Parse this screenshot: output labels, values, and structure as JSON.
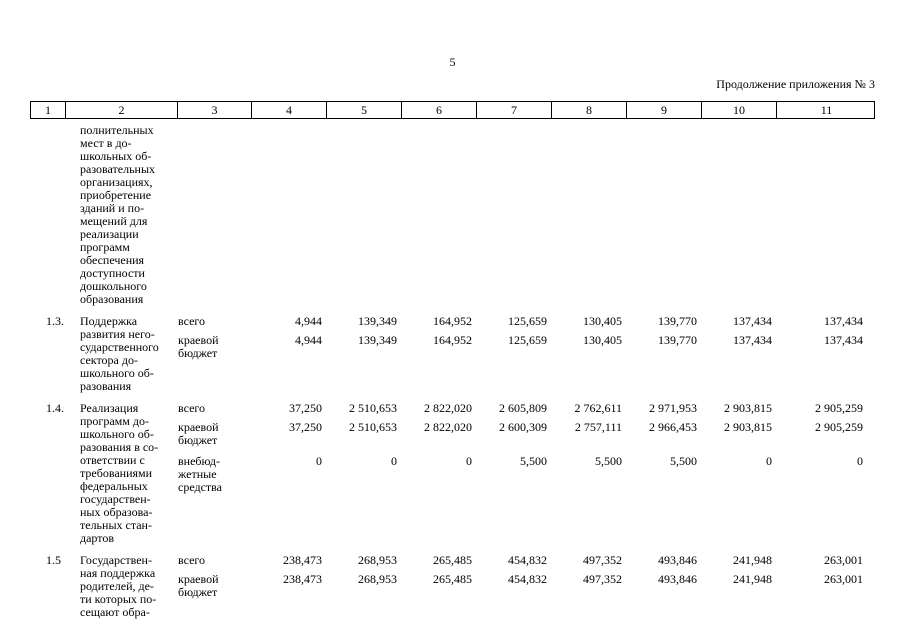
{
  "page": {
    "number": "5",
    "continuation_note": "Продолжение приложения № 3"
  },
  "table": {
    "header_columns": [
      "1",
      "2",
      "3",
      "4",
      "5",
      "6",
      "7",
      "8",
      "9",
      "10",
      "11"
    ],
    "carryover_text": "полнительных\nмест в до-\nшкольных об-\nразовательных\nорганизациях,\nприобретение\nзданий и по-\nмещений для\nреализации\nпрограмм\nобеспечения\nдоступности\nдошкольного\nобразования",
    "rows": [
      {
        "num": "1.3.",
        "title": "Поддержка\nразвития него-\nсударственного\nсектора до-\nшкольного об-\nразования",
        "sources": [
          {
            "label": "всего",
            "values": [
              "4,944",
              "139,349",
              "164,952",
              "125,659",
              "130,405",
              "139,770",
              "137,434",
              "137,434"
            ]
          },
          {
            "label": "краевой\nбюджет",
            "values": [
              "4,944",
              "139,349",
              "164,952",
              "125,659",
              "130,405",
              "139,770",
              "137,434",
              "137,434"
            ]
          }
        ]
      },
      {
        "num": "1.4.",
        "title": "Реализация\nпрограмм до-\nшкольного об-\nразования в со-\nответствии с\nтребованиями\nфедеральных\nгосударствен-\nных образова-\nтельных стан-\nдартов",
        "sources": [
          {
            "label": "всего",
            "values": [
              "37,250",
              "2 510,653",
              "2 822,020",
              "2 605,809",
              "2 762,611",
              "2 971,953",
              "2 903,815",
              "2 905,259"
            ]
          },
          {
            "label": "краевой\nбюджет",
            "values": [
              "37,250",
              "2 510,653",
              "2 822,020",
              "2 600,309",
              "2 757,111",
              "2 966,453",
              "2 903,815",
              "2 905,259"
            ]
          },
          {
            "label": "внебюд-\nжетные\nсредства",
            "values": [
              "0",
              "0",
              "0",
              "5,500",
              "5,500",
              "5,500",
              "0",
              "0"
            ]
          }
        ]
      },
      {
        "num": "1.5",
        "title": "Государствен-\nная поддержка\nродителей, де-\nти которых по-\nсещают обра-",
        "sources": [
          {
            "label": "всего",
            "values": [
              "238,473",
              "268,953",
              "265,485",
              "454,832",
              "497,352",
              "493,846",
              "241,948",
              "263,001"
            ]
          },
          {
            "label": "краевой\nбюджет",
            "values": [
              "238,473",
              "268,953",
              "265,485",
              "454,832",
              "497,352",
              "493,846",
              "241,948",
              "263,001"
            ]
          }
        ]
      }
    ]
  }
}
